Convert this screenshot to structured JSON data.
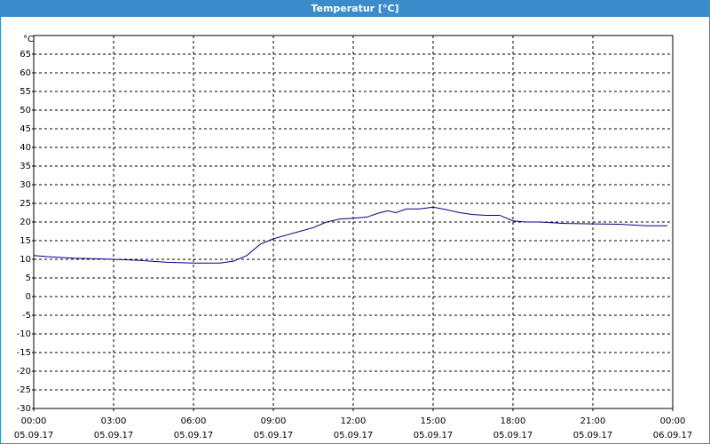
{
  "chart_data": {
    "type": "line",
    "title": "Temperatur [°C]",
    "y_label": "°C",
    "x": [
      0,
      0.5,
      1,
      1.5,
      2,
      3,
      4,
      5,
      6,
      7,
      7.5,
      8,
      8.5,
      9,
      9.5,
      10,
      10.5,
      11,
      11.5,
      12,
      12.5,
      13,
      13.3,
      13.6,
      14,
      14.5,
      15,
      15.5,
      16,
      16.5,
      17,
      17.5,
      18,
      18.5,
      19,
      20,
      21,
      22,
      23,
      23.8
    ],
    "series": [
      {
        "name": "Temperatur",
        "color": "#000080",
        "values": [
          11,
          10.7,
          10.5,
          10.3,
          10.2,
          10,
          9.7,
          9.2,
          9,
          9,
          9.5,
          11,
          14,
          15.5,
          16.5,
          17.5,
          18.5,
          20,
          20.8,
          21,
          21.3,
          22.5,
          23,
          22.5,
          23.5,
          23.5,
          24,
          23.3,
          22.5,
          22,
          21.8,
          21.8,
          20.3,
          20,
          20,
          19.6,
          19.5,
          19.4,
          19,
          19
        ]
      }
    ],
    "xlim": [
      0,
      24
    ],
    "ylim": [
      -30,
      70
    ],
    "xticks": [
      {
        "value": 0,
        "label": "00:00",
        "date": "05.09.17"
      },
      {
        "value": 3,
        "label": "03:00",
        "date": "05.09.17"
      },
      {
        "value": 6,
        "label": "06:00",
        "date": "05.09.17"
      },
      {
        "value": 9,
        "label": "09:00",
        "date": "05.09.17"
      },
      {
        "value": 12,
        "label": "12:00",
        "date": "05.09.17"
      },
      {
        "value": 15,
        "label": "15:00",
        "date": "05.09.17"
      },
      {
        "value": 18,
        "label": "18:00",
        "date": "05.09.17"
      },
      {
        "value": 21,
        "label": "21:00",
        "date": "05.09.17"
      },
      {
        "value": 24,
        "label": "00:00",
        "date": "06.09.17"
      }
    ],
    "yticks": [
      -30,
      -25,
      -20,
      -15,
      -10,
      -5,
      0,
      5,
      10,
      15,
      20,
      25,
      30,
      35,
      40,
      45,
      50,
      55,
      60,
      65
    ],
    "grid": true
  }
}
